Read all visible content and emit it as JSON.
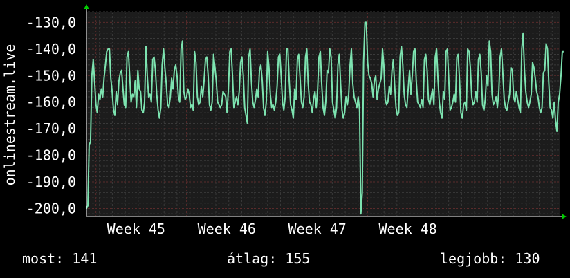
{
  "colors": {
    "background": "#000000",
    "plot_background": "#1c1c1c",
    "grid_major": "#5a2b2b",
    "grid_minor": "#3a3a3a",
    "line": "#7de3b0",
    "text": "#ffffff",
    "axis_arrow": "#00cc00"
  },
  "chart_data": {
    "type": "line",
    "title": "",
    "ylabel": "onlinestream.live",
    "xlabel": "",
    "ylim": [
      -203,
      -126
    ],
    "y_ticks": [
      -130,
      -140,
      -150,
      -160,
      -170,
      -180,
      -190,
      -200
    ],
    "y_tick_labels": [
      "-130,0",
      "-140,0",
      "-150,0",
      "-160,0",
      "-170,0",
      "-180,0",
      "-190,0",
      "-200,0"
    ],
    "x_range": [
      0,
      350
    ],
    "x_ticks": [
      7,
      74,
      141,
      208
    ],
    "x_tick_labels": [
      "Week 45",
      "Week 46",
      "Week 47",
      "Week 48"
    ],
    "grid": true,
    "legend": "none",
    "series": [
      {
        "values": [
          -200,
          -199,
          -176,
          -175,
          -150,
          -144,
          -152,
          -161,
          -164,
          -157,
          -159,
          -155,
          -158,
          -151,
          -146,
          -141,
          -140,
          -140,
          -151,
          -156,
          -163,
          -165,
          -156,
          -161,
          -152,
          -149,
          -148,
          -155,
          -161,
          -162,
          -143,
          -141,
          -150,
          -160,
          -157,
          -158,
          -152,
          -162,
          -148,
          -155,
          -156,
          -163,
          -164,
          -160,
          -139,
          -150,
          -158,
          -157,
          -160,
          -144,
          -143,
          -148,
          -157,
          -163,
          -166,
          -162,
          -146,
          -140,
          -147,
          -153,
          -161,
          -162,
          -158,
          -151,
          -155,
          -148,
          -146,
          -150,
          -158,
          -160,
          -140,
          -137,
          -156,
          -159,
          -158,
          -155,
          -157,
          -162,
          -161,
          -163,
          -141,
          -145,
          -158,
          -161,
          -160,
          -154,
          -158,
          -152,
          -144,
          -143,
          -150,
          -161,
          -163,
          -160,
          -142,
          -147,
          -152,
          -160,
          -161,
          -162,
          -161,
          -156,
          -157,
          -158,
          -164,
          -155,
          -141,
          -140,
          -150,
          -162,
          -160,
          -158,
          -161,
          -156,
          -145,
          -143,
          -150,
          -162,
          -165,
          -168,
          -143,
          -140,
          -152,
          -160,
          -162,
          -159,
          -155,
          -158,
          -148,
          -146,
          -152,
          -162,
          -165,
          -160,
          -141,
          -147,
          -157,
          -162,
          -161,
          -163,
          -160,
          -154,
          -143,
          -142,
          -150,
          -160,
          -163,
          -158,
          -140,
          -140,
          -152,
          -161,
          -163,
          -166,
          -155,
          -159,
          -144,
          -142,
          -151,
          -160,
          -162,
          -158,
          -143,
          -140,
          -153,
          -160,
          -161,
          -164,
          -159,
          -156,
          -162,
          -155,
          -143,
          -141,
          -153,
          -162,
          -165,
          -160,
          -148,
          -149,
          -140,
          -143,
          -160,
          -163,
          -166,
          -162,
          -146,
          -142,
          -153,
          -163,
          -166,
          -164,
          -158,
          -161,
          -157,
          -146,
          -140,
          -153,
          -158,
          -160,
          -162,
          -158,
          -163,
          -202,
          -194,
          -145,
          -130,
          -130,
          -145,
          -150,
          -151,
          -153,
          -158,
          -152,
          -150,
          -159,
          -155,
          -153,
          -151,
          -140,
          -146,
          -159,
          -161,
          -160,
          -154,
          -157,
          -148,
          -144,
          -154,
          -162,
          -165,
          -164,
          -143,
          -139,
          -146,
          -157,
          -161,
          -162,
          -155,
          -148,
          -157,
          -150,
          -141,
          -140,
          -152,
          -160,
          -161,
          -162,
          -159,
          -162,
          -144,
          -142,
          -148,
          -159,
          -161,
          -158,
          -155,
          -161,
          -143,
          -140,
          -151,
          -160,
          -164,
          -166,
          -156,
          -159,
          -141,
          -140,
          -151,
          -163,
          -162,
          -160,
          -157,
          -160,
          -143,
          -142,
          -152,
          -164,
          -166,
          -161,
          -160,
          -163,
          -140,
          -141,
          -147,
          -158,
          -161,
          -160,
          -156,
          -160,
          -144,
          -142,
          -149,
          -161,
          -163,
          -159,
          -150,
          -154,
          -137,
          -141,
          -157,
          -161,
          -160,
          -158,
          -162,
          -156,
          -143,
          -140,
          -149,
          -159,
          -162,
          -163,
          -160,
          -157,
          -147,
          -148,
          -158,
          -160,
          -156,
          -159,
          -162,
          -164,
          -140,
          -134,
          -148,
          -156,
          -160,
          -162,
          -160,
          -157,
          -145,
          -147,
          -151,
          -156,
          -158,
          -162,
          -164,
          -162,
          -149,
          -148,
          -138,
          -140,
          -153,
          -162,
          -163,
          -166,
          -160,
          -167,
          -171,
          -160,
          -157,
          -150,
          -141,
          -141
        ]
      }
    ]
  },
  "stats": {
    "current": "most: 141",
    "average": "átlag: 155",
    "best": "legjobb: 130"
  }
}
